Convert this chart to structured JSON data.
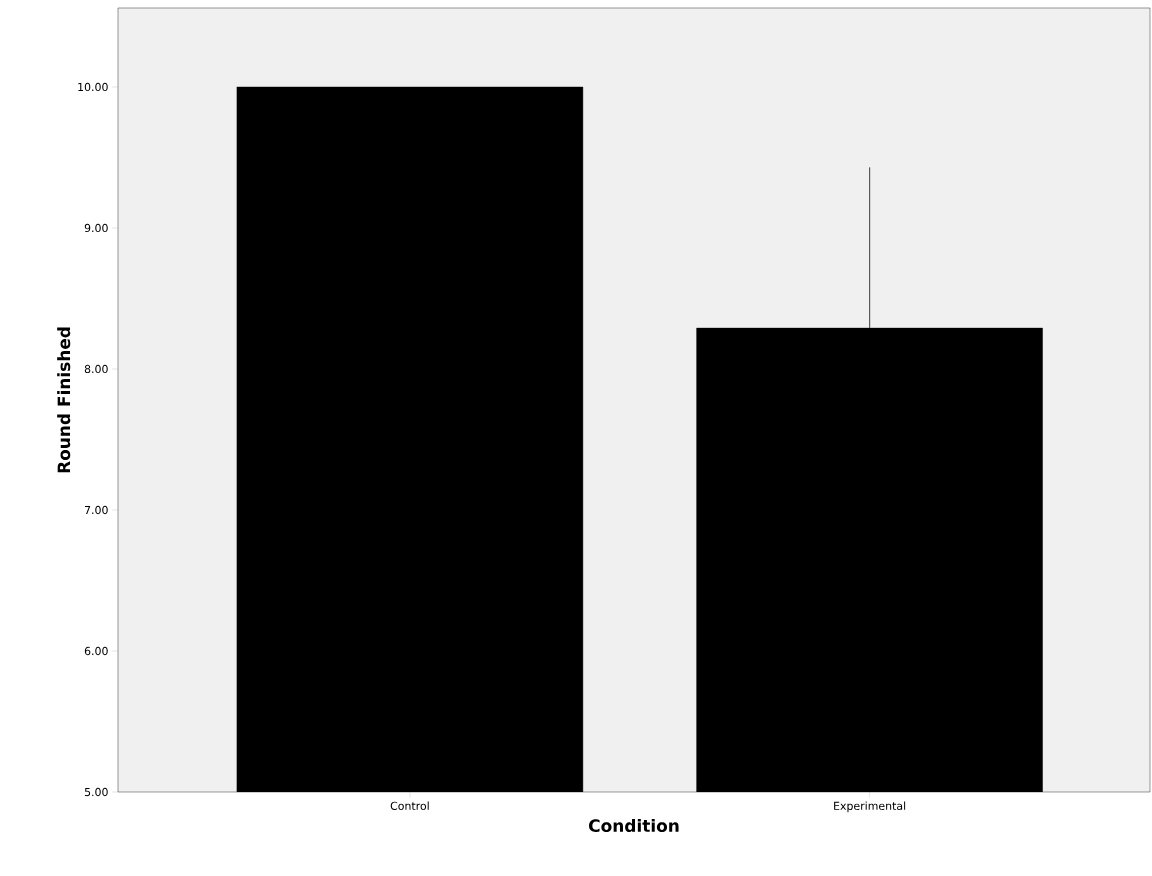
{
  "chart_data": {
    "type": "bar",
    "xlabel": "Condition",
    "ylabel": "Round Finished",
    "categories": [
      "Control",
      "Experimental"
    ],
    "values": [
      10.0,
      8.29
    ],
    "errors": [
      null,
      [
        8.29,
        9.43
      ]
    ],
    "color": "#000000",
    "ylim": [
      5,
      10.56
    ],
    "yticks": [
      {
        "value": 5,
        "label": "5.00"
      },
      {
        "value": 6,
        "label": "6.00"
      },
      {
        "value": 7,
        "label": "7.00"
      },
      {
        "value": 8,
        "label": "8.00"
      },
      {
        "value": 9,
        "label": "9.00"
      },
      {
        "value": 10,
        "label": "10.00"
      }
    ],
    "grid": false
  }
}
